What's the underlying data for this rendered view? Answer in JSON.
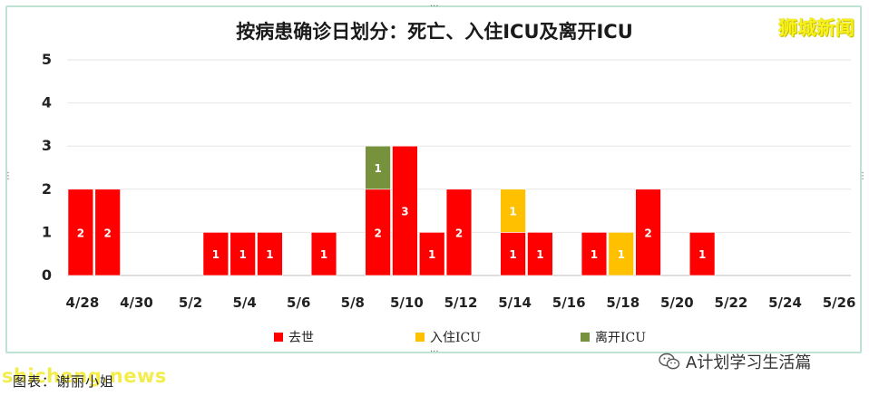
{
  "brand": "狮城新闻",
  "caption": "图表：谢丽小姐",
  "caption_watermark": "shicheng.news",
  "wechat_account": "A计划学习生活篇",
  "chart_data": {
    "type": "bar",
    "stacked": true,
    "title": "按病患确诊日划分：死亡、入住ICU及离开ICU",
    "xlabel": "",
    "ylabel": "",
    "ylim": [
      0,
      5
    ],
    "yticks": [
      "0",
      "1",
      "2",
      "3",
      "4",
      "5"
    ],
    "grid": true,
    "legend_position": "bottom",
    "categories": [
      "4/28",
      "4/29",
      "4/30",
      "5/1",
      "5/2",
      "5/3",
      "5/4",
      "5/5",
      "5/6",
      "5/7",
      "5/8",
      "5/9",
      "5/10",
      "5/11",
      "5/12",
      "5/13",
      "5/14",
      "5/15",
      "5/16",
      "5/17",
      "5/18",
      "5/19",
      "5/20",
      "5/21",
      "5/22",
      "5/23",
      "5/24",
      "5/25",
      "5/26"
    ],
    "xtick_labels": [
      "4/28",
      "4/30",
      "5/2",
      "5/4",
      "5/6",
      "5/8",
      "5/10",
      "5/12",
      "5/14",
      "5/16",
      "5/18",
      "5/20",
      "5/22",
      "5/24",
      "5/26"
    ],
    "series": [
      {
        "name": "去世",
        "color": "#ff0000",
        "values": [
          2,
          2,
          0,
          0,
          0,
          1,
          1,
          1,
          0,
          1,
          0,
          2,
          3,
          1,
          2,
          0,
          1,
          1,
          0,
          1,
          0,
          2,
          0,
          1,
          0,
          0,
          0,
          0,
          0
        ]
      },
      {
        "name": "入住ICU",
        "color": "#ffc000",
        "values": [
          0,
          0,
          0,
          0,
          0,
          0,
          0,
          0,
          0,
          0,
          0,
          0,
          0,
          0,
          0,
          0,
          1,
          0,
          0,
          0,
          1,
          0,
          0,
          0,
          0,
          0,
          0,
          0,
          0
        ]
      },
      {
        "name": "离开ICU",
        "color": "#76923c",
        "values": [
          0,
          0,
          0,
          0,
          0,
          0,
          0,
          0,
          0,
          0,
          0,
          1,
          0,
          0,
          0,
          0,
          0,
          0,
          0,
          0,
          0,
          0,
          0,
          0,
          0,
          0,
          0,
          0,
          0
        ]
      }
    ]
  }
}
